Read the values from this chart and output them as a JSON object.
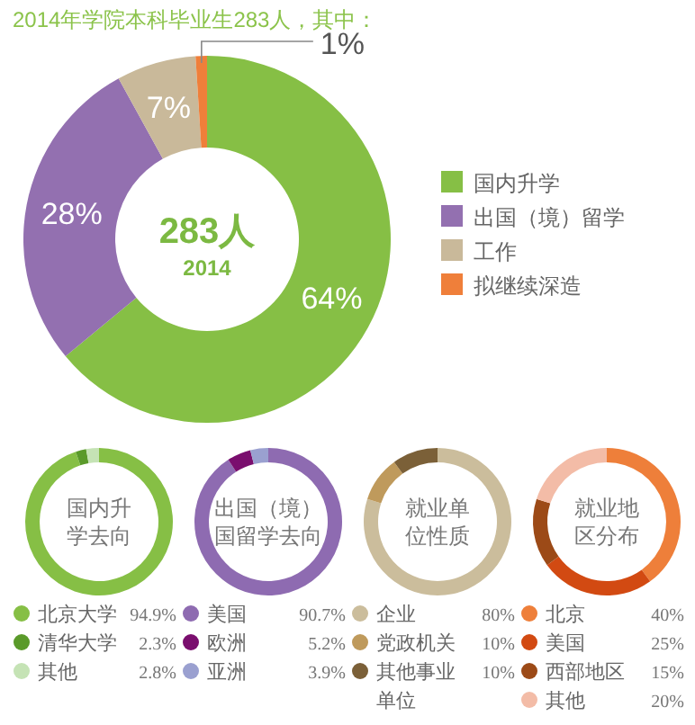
{
  "chart_data": [
    {
      "type": "donut",
      "title": "2014年学院本科毕业生283人，其中：",
      "annotations": [
        "283人",
        "2014"
      ],
      "categories": [
        "国内升学",
        "出国（境）留学",
        "工作",
        "拟继续深造"
      ],
      "values": [
        64,
        28,
        7,
        1
      ],
      "colors": [
        "#86bf45",
        "#9370b0",
        "#c9b99a",
        "#ef7f3a"
      ],
      "value_labels": [
        "64%",
        "28%",
        "7%",
        "1%"
      ],
      "legend": "right"
    },
    {
      "type": "donut",
      "title": "国内升学去向",
      "categories": [
        "北京大学",
        "清华大学",
        "其他"
      ],
      "values": [
        94.9,
        2.3,
        2.8
      ],
      "colors": [
        "#86bf45",
        "#5a9a2a",
        "#c5e3b5"
      ],
      "value_labels": [
        "94.9%",
        "2.3%",
        "2.8%"
      ],
      "legend": "bottom"
    },
    {
      "type": "donut",
      "title": "出国（境）国留学去向",
      "categories": [
        "美国",
        "欧洲",
        "亚洲"
      ],
      "values": [
        90.7,
        5.2,
        3.9
      ],
      "colors": [
        "#8e6bb1",
        "#7a0e6e",
        "#9aa0d0"
      ],
      "value_labels": [
        "90.7%",
        "5.2%",
        "3.9%"
      ],
      "legend": "bottom"
    },
    {
      "type": "donut",
      "title": "就业单位性质",
      "categories": [
        "企业",
        "党政机关",
        "其他事业单位"
      ],
      "values": [
        80,
        10,
        10
      ],
      "colors": [
        "#cbbd9c",
        "#bf9a5c",
        "#7b6038"
      ],
      "value_labels": [
        "80%",
        "10%",
        "10%"
      ],
      "legend": "bottom"
    },
    {
      "type": "donut",
      "title": "就业地区分布",
      "categories": [
        "北京",
        "美国",
        "西部地区",
        "其他"
      ],
      "values": [
        40,
        25,
        15,
        20
      ],
      "colors": [
        "#ee7f3a",
        "#d24a12",
        "#9c4a17",
        "#f3bca7"
      ],
      "value_labels": [
        "40%",
        "25%",
        "15%",
        "20%"
      ],
      "legend": "bottom"
    }
  ]
}
